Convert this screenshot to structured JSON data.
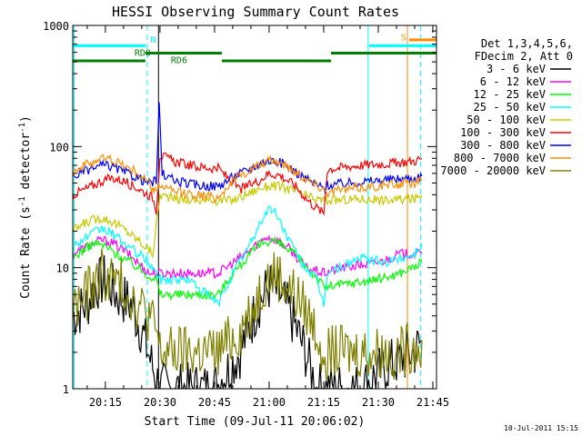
{
  "chart_data": {
    "type": "line",
    "title": "HESSI Observing Summary Count Rates",
    "xlabel": "Start Time (09-Jul-11 20:06:02)",
    "ylabel_parts": [
      "Count Rate (s",
      "-1",
      " detector",
      "-1",
      ")"
    ],
    "xlim_minutes": [
      6.03,
      106
    ],
    "ylim": [
      1,
      1000
    ],
    "yscale": "log",
    "x_ticks": [
      {
        "m": 15,
        "label": "20:15"
      },
      {
        "m": 30,
        "label": "20:30"
      },
      {
        "m": 45,
        "label": "20:45"
      },
      {
        "m": 60,
        "label": "21:00"
      },
      {
        "m": 75,
        "label": "21:15"
      },
      {
        "m": 90,
        "label": "21:30"
      },
      {
        "m": 105,
        "label": "21:45"
      }
    ],
    "y_ticks": [
      {
        "v": 1,
        "label": "1"
      },
      {
        "v": 10,
        "label": "10"
      },
      {
        "v": 100,
        "label": "100"
      },
      {
        "v": 1000,
        "label": "1000"
      }
    ],
    "legend": {
      "header": [
        "Det 1,3,4,5,6,",
        "FDecim 2, Att 0"
      ],
      "placement": "right"
    },
    "series": [
      {
        "name": "3 - 6 keV",
        "color": "#000000",
        "points": [
          [
            6,
            4
          ],
          [
            10,
            5
          ],
          [
            12,
            7
          ],
          [
            15,
            8
          ],
          [
            18,
            6
          ],
          [
            22,
            5
          ],
          [
            25,
            3
          ],
          [
            28,
            1.5
          ],
          [
            30,
            1
          ],
          [
            45,
            1
          ],
          [
            52,
            2
          ],
          [
            57,
            5
          ],
          [
            60,
            7
          ],
          [
            63,
            6
          ],
          [
            66,
            4
          ],
          [
            70,
            2
          ],
          [
            73,
            1
          ],
          [
            85,
            1
          ],
          [
            92,
            1.5
          ],
          [
            100,
            2
          ],
          [
            102,
            2.5
          ]
        ]
      },
      {
        "name": "6 - 12 keV",
        "color": "#ff00ff",
        "points": [
          [
            6,
            13
          ],
          [
            10,
            15
          ],
          [
            14,
            17
          ],
          [
            17,
            16
          ],
          [
            20,
            14
          ],
          [
            24,
            11
          ],
          [
            27,
            9
          ],
          [
            30,
            9
          ],
          [
            46,
            9
          ],
          [
            52,
            12
          ],
          [
            56,
            15
          ],
          [
            59,
            18
          ],
          [
            62,
            17
          ],
          [
            66,
            14
          ],
          [
            70,
            10
          ],
          [
            75,
            9
          ],
          [
            80,
            10
          ],
          [
            90,
            11
          ],
          [
            96,
            13
          ],
          [
            102,
            13
          ]
        ]
      },
      {
        "name": "12 - 25 keV",
        "color": "#00ff00",
        "points": [
          [
            6,
            12
          ],
          [
            9,
            14
          ],
          [
            12,
            16
          ],
          [
            15,
            15
          ],
          [
            18,
            13
          ],
          [
            22,
            11
          ],
          [
            26,
            9
          ],
          [
            29,
            8
          ],
          [
            30,
            6
          ],
          [
            46,
            6
          ],
          [
            50,
            9
          ],
          [
            55,
            13
          ],
          [
            58,
            16
          ],
          [
            61,
            17
          ],
          [
            64,
            15
          ],
          [
            68,
            12
          ],
          [
            72,
            9
          ],
          [
            75,
            7
          ],
          [
            76,
            7
          ],
          [
            90,
            8
          ],
          [
            96,
            9
          ],
          [
            102,
            11
          ]
        ]
      },
      {
        "name": "25 - 50 keV",
        "color": "#00ffff",
        "points": [
          [
            6,
            15
          ],
          [
            10,
            18
          ],
          [
            14,
            21
          ],
          [
            17,
            19
          ],
          [
            20,
            16
          ],
          [
            24,
            13
          ],
          [
            27,
            11
          ],
          [
            28,
            10
          ],
          [
            30,
            8
          ],
          [
            38,
            8
          ],
          [
            46,
            5
          ],
          [
            50,
            9
          ],
          [
            55,
            16
          ],
          [
            58,
            25
          ],
          [
            60,
            31
          ],
          [
            62,
            28
          ],
          [
            65,
            18
          ],
          [
            69,
            11
          ],
          [
            73,
            8
          ],
          [
            75,
            5
          ],
          [
            76,
            9
          ],
          [
            85,
            12
          ],
          [
            92,
            11
          ],
          [
            100,
            13
          ],
          [
            102,
            16
          ]
        ]
      },
      {
        "name": "50 - 100 keV",
        "color": "#c8c800",
        "points": [
          [
            6,
            20
          ],
          [
            10,
            24
          ],
          [
            14,
            26
          ],
          [
            17,
            24
          ],
          [
            20,
            21
          ],
          [
            24,
            17
          ],
          [
            27,
            14
          ],
          [
            28,
            13
          ],
          [
            30,
            40
          ],
          [
            34,
            37
          ],
          [
            40,
            36
          ],
          [
            46,
            36
          ],
          [
            50,
            36
          ],
          [
            55,
            42
          ],
          [
            58,
            46
          ],
          [
            61,
            48
          ],
          [
            64,
            46
          ],
          [
            68,
            42
          ],
          [
            72,
            37
          ],
          [
            75,
            36
          ],
          [
            76,
            36
          ],
          [
            85,
            37
          ],
          [
            92,
            36
          ],
          [
            100,
            37
          ],
          [
            102,
            40
          ]
        ]
      },
      {
        "name": "100 - 300 keV",
        "color": "#ff0000",
        "points": [
          [
            6,
            40
          ],
          [
            10,
            45
          ],
          [
            14,
            52
          ],
          [
            17,
            55
          ],
          [
            20,
            52
          ],
          [
            24,
            45
          ],
          [
            28,
            38
          ],
          [
            29,
            30
          ],
          [
            30,
            85
          ],
          [
            34,
            75
          ],
          [
            40,
            68
          ],
          [
            46,
            66
          ],
          [
            52,
            44
          ],
          [
            57,
            52
          ],
          [
            60,
            60
          ],
          [
            63,
            58
          ],
          [
            67,
            48
          ],
          [
            71,
            35
          ],
          [
            75,
            28
          ],
          [
            76,
            65
          ],
          [
            85,
            70
          ],
          [
            92,
            72
          ],
          [
            100,
            76
          ],
          [
            102,
            80
          ]
        ]
      },
      {
        "name": "300 - 800 keV",
        "color": "#0000ff",
        "points": [
          [
            6,
            56
          ],
          [
            10,
            64
          ],
          [
            14,
            70
          ],
          [
            17,
            68
          ],
          [
            20,
            62
          ],
          [
            24,
            55
          ],
          [
            27,
            50
          ],
          [
            29,
            52
          ],
          [
            29.8,
            215
          ],
          [
            30.6,
            60
          ],
          [
            34,
            52
          ],
          [
            40,
            48
          ],
          [
            46,
            47
          ],
          [
            50,
            56
          ],
          [
            55,
            66
          ],
          [
            58,
            74
          ],
          [
            61,
            77
          ],
          [
            64,
            72
          ],
          [
            68,
            60
          ],
          [
            72,
            50
          ],
          [
            75,
            45
          ],
          [
            76,
            48
          ],
          [
            85,
            51
          ],
          [
            92,
            53
          ],
          [
            100,
            55
          ],
          [
            102,
            57
          ]
        ]
      },
      {
        "name": "800 - 7000 keV",
        "color": "#ff8c00",
        "points": [
          [
            6,
            62
          ],
          [
            10,
            72
          ],
          [
            14,
            80
          ],
          [
            17,
            78
          ],
          [
            20,
            70
          ],
          [
            24,
            60
          ],
          [
            27,
            50
          ],
          [
            28,
            42
          ],
          [
            30,
            48
          ],
          [
            34,
            42
          ],
          [
            40,
            40
          ],
          [
            46,
            38
          ],
          [
            50,
            52
          ],
          [
            55,
            65
          ],
          [
            58,
            72
          ],
          [
            61,
            77
          ],
          [
            64,
            72
          ],
          [
            68,
            60
          ],
          [
            72,
            50
          ],
          [
            75,
            45
          ],
          [
            76,
            42
          ],
          [
            85,
            46
          ],
          [
            92,
            48
          ],
          [
            100,
            50
          ],
          [
            102,
            52
          ]
        ]
      },
      {
        "name": "7000 - 20000 keV",
        "color": "#808000",
        "points": [
          [
            6,
            4.5
          ],
          [
            10,
            6
          ],
          [
            14,
            9
          ],
          [
            17,
            8
          ],
          [
            20,
            7
          ],
          [
            24,
            5
          ],
          [
            27,
            4
          ],
          [
            29,
            3
          ],
          [
            30,
            2
          ],
          [
            34,
            2
          ],
          [
            40,
            2
          ],
          [
            46,
            2
          ],
          [
            52,
            3
          ],
          [
            56,
            5
          ],
          [
            59,
            8
          ],
          [
            62,
            9
          ],
          [
            65,
            7
          ],
          [
            69,
            5
          ],
          [
            73,
            3
          ],
          [
            75,
            2
          ],
          [
            90,
            2
          ],
          [
            96,
            2
          ],
          [
            102,
            2.5
          ]
        ]
      }
    ],
    "annotations": [
      {
        "text": "N",
        "color": "#00ffff"
      },
      {
        "text": "RD0",
        "color": "#008000"
      },
      {
        "text": "RD6",
        "color": "#008000"
      },
      {
        "text": "S",
        "color": "#ff8c00"
      }
    ]
  },
  "footer": {
    "timestamp": "10-Jul-2011 15:15"
  }
}
